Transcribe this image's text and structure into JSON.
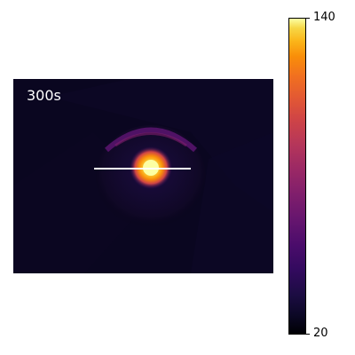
{
  "image": {
    "timestamp_label": "300s"
  },
  "colorbar": {
    "colormap": "inferno",
    "min_label": "20",
    "max_label": "140",
    "min_color": "#000004",
    "max_color": "#fcffa4"
  },
  "overlay": {
    "line_color": "#ffffff"
  }
}
